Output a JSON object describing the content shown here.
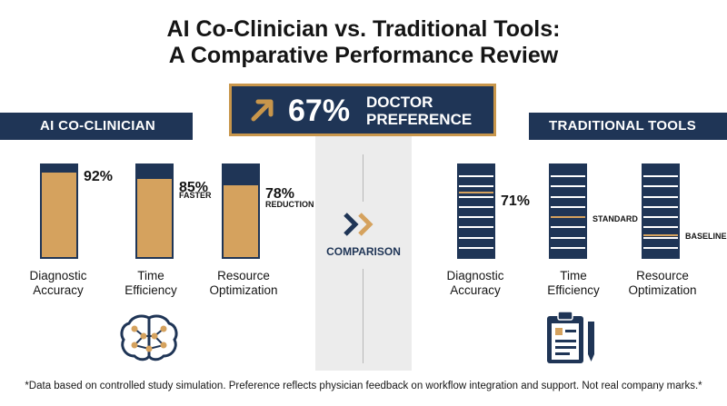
{
  "title": {
    "line1": "AI Co-Clinician vs. Traditional Tools:",
    "line2": "A Comparative Performance Review"
  },
  "headline": {
    "value": "67%",
    "line1": "DOCTOR",
    "line2": "PREFERENCE",
    "icon": "trend-up-arrow-icon"
  },
  "sections": {
    "left": "AI CO-CLINICIAN",
    "center": "COMPARISON",
    "right": "TRADITIONAL TOOLS"
  },
  "chart_data": [
    {
      "type": "bar",
      "group": "AI CO-CLINICIAN",
      "categories": [
        "Diagnostic Accuracy",
        "Time Efficiency",
        "Resource Optimization"
      ],
      "category_lines": [
        [
          "Diagnostic",
          "Accuracy"
        ],
        [
          "Time",
          "Efficiency"
        ],
        [
          "Resource",
          "Optimization"
        ]
      ],
      "values": [
        92,
        85,
        78
      ],
      "value_labels": [
        "92%",
        "85%",
        "78%"
      ],
      "value_sublabels": [
        "",
        "FASTER",
        "REDUCTION"
      ],
      "ylim": [
        0,
        100
      ]
    },
    {
      "type": "bar",
      "group": "TRADITIONAL TOOLS",
      "categories": [
        "Diagnostic Accuracy",
        "Time Efficiency",
        "Resource Optimization"
      ],
      "category_lines": [
        [
          "Diagnostic",
          "Accuracy"
        ],
        [
          "Time",
          "Efficiency"
        ],
        [
          "Resource",
          "Optimization"
        ]
      ],
      "value_labels": [
        "71%",
        "",
        ""
      ],
      "value_sublabels": [
        "",
        "STANDARD",
        "BASELINE"
      ],
      "values": [
        71,
        null,
        null
      ],
      "marker_levels": [
        71,
        45,
        25
      ],
      "ylim": [
        0,
        100
      ]
    }
  ],
  "icons": {
    "left": "brain-network-icon",
    "right": "clipboard-pen-icon",
    "center": "double-chevron-icon"
  },
  "colors": {
    "navy": "#1f3556",
    "gold": "#d5a25e",
    "headline_border": "#c8964b"
  },
  "footnote": "*Data based on controlled study simulation. Preference reflects physician feedback on workflow integration and support. Not real company marks.*"
}
